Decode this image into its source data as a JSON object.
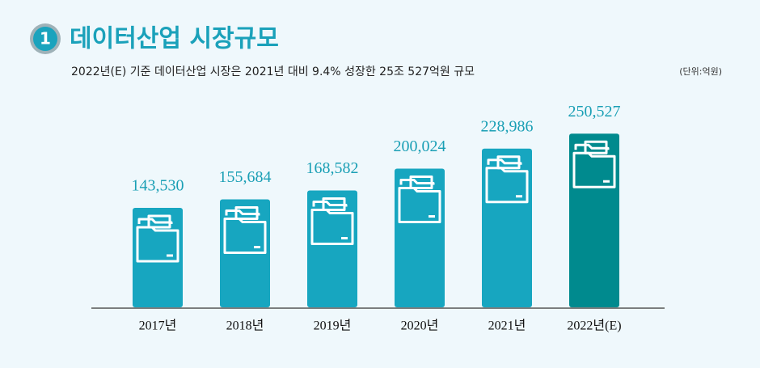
{
  "chart_data": {
    "type": "bar",
    "title_number": "1",
    "title": "데이터산업 시장규모",
    "subtitle": "2022년(E) 기준 데이터산업 시장은 2021년 대비 9.4% 성장한 25조 527억원 규모",
    "unit_note": "(단위:억원)",
    "categories": [
      "2017년",
      "2018년",
      "2019년",
      "2020년",
      "2021년",
      "2022년(E)"
    ],
    "values": [
      143530,
      155684,
      168582,
      200024,
      228986,
      250527
    ],
    "value_labels": [
      "143,530",
      "155,684",
      "168,582",
      "200,024",
      "228,986",
      "250,527"
    ],
    "colors": [
      "#17a6c0",
      "#17a6c0",
      "#17a6c0",
      "#17a6c0",
      "#17a6c0",
      "#008a8e"
    ],
    "ylim": [
      0,
      280000
    ]
  }
}
